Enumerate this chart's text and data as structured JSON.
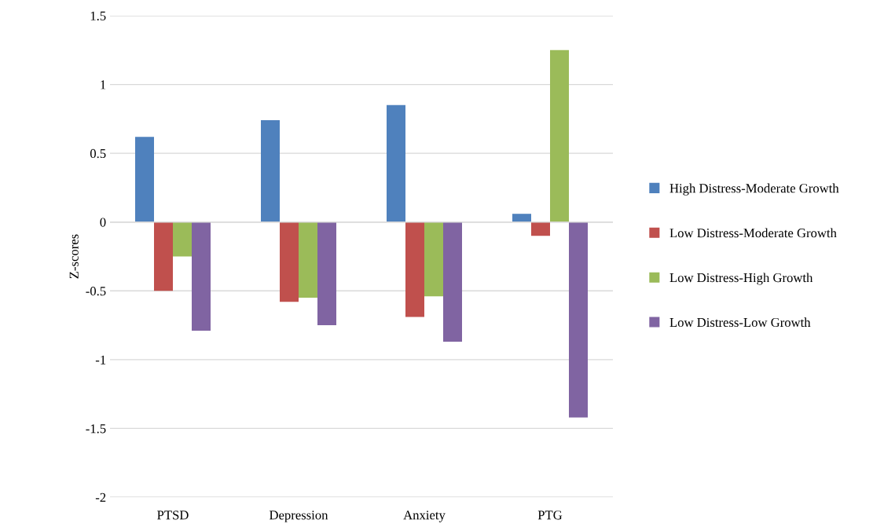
{
  "chart_data": {
    "type": "bar",
    "ylabel": "Z-scores",
    "categories": [
      "PTSD",
      "Depression",
      "Anxiety",
      "PTG"
    ],
    "series": [
      {
        "name": "High Distress-Moderate Growth",
        "color": "#4f81bd",
        "values": [
          0.62,
          0.74,
          0.85,
          0.06
        ]
      },
      {
        "name": "Low Distress-Moderate Growth",
        "color": "#c0504d",
        "values": [
          -0.5,
          -0.58,
          -0.69,
          -0.1
        ]
      },
      {
        "name": "Low Distress-High Growth",
        "color": "#9bbb59",
        "values": [
          -0.25,
          -0.55,
          -0.54,
          1.25
        ]
      },
      {
        "name": "Low Distress-Low Growth",
        "color": "#8064a2",
        "values": [
          -0.79,
          -0.75,
          -0.87,
          -1.42
        ]
      }
    ],
    "ylim": [
      -2,
      1.5
    ],
    "yticks": [
      -2,
      -1.5,
      -1,
      -0.5,
      0,
      0.5,
      1,
      1.5
    ],
    "grid": "y",
    "legend": "right"
  }
}
